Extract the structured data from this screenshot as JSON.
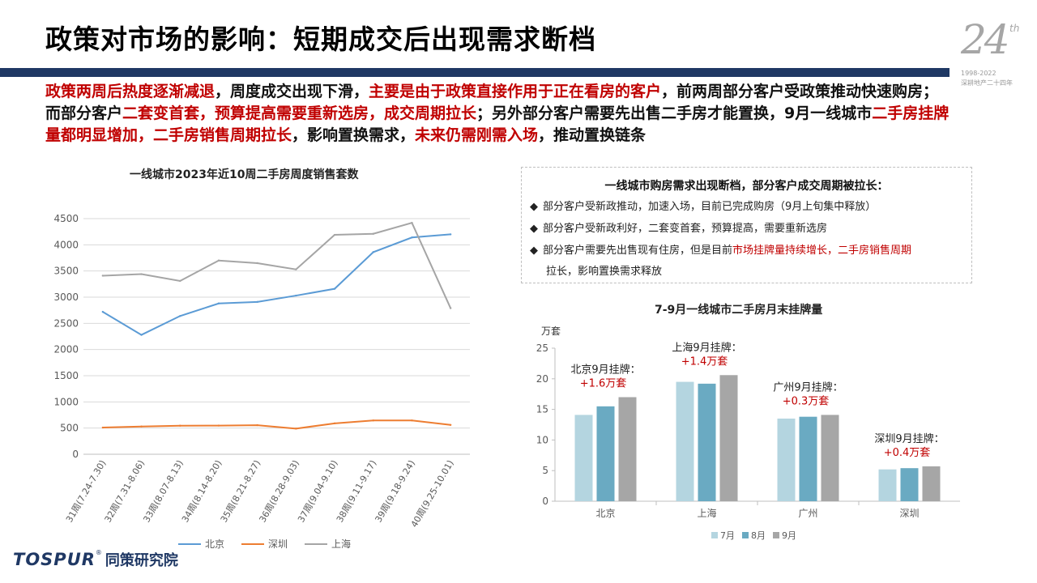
{
  "page": {
    "title": "政策对市场的影响：短期成交后出现需求断档",
    "badge": {
      "number": "24",
      "suffix": "th",
      "years": "1998-2022",
      "motto": "深耕地产二十四年"
    },
    "intro": [
      {
        "t": "政策两周后热度逐渐减退",
        "red": true
      },
      {
        "t": "，周度成交出现下滑，",
        "red": false
      },
      {
        "t": "主要是由于政策直接作用于正在看房的客户",
        "red": true
      },
      {
        "t": "，前两周部分客户受政策推动快速购房；而部分客户",
        "red": false
      },
      {
        "t": "二套变首套，预算提高需要重新选房，成交周期拉长",
        "red": true
      },
      {
        "t": "；另外部分客户需要先出售二手房才能置换，9月一线城市",
        "red": false
      },
      {
        "t": "二手房挂牌量都明显增加，二手房销售周期拉长",
        "red": true
      },
      {
        "t": "，影响置换需求，",
        "red": false
      },
      {
        "t": "未来仍需刚需入场",
        "red": true
      },
      {
        "t": "，推动置换链条",
        "red": false
      }
    ],
    "note": {
      "title": "一线城市购房需求出现断档，部分客户成交周期被拉长：",
      "bullet": "◆",
      "item1": "部分客户受新政推动，加速入场，目前已完成购房（9月上旬集中释放）",
      "item2": "部分客户受新政利好，二套变首套，预算提高，需要重新选房",
      "item3_a": "部分客户需要先出售现有住房，但是目前",
      "item3_red": "市场挂牌量持续增长，二手房销售周期",
      "item3_red2": "拉长，影响置换需求释放"
    },
    "logo": {
      "en": "TOSPUR",
      "reg": "®",
      "cn": "同策研究院"
    }
  },
  "chart_data": [
    {
      "type": "line",
      "title": "一线城市2023年近10周二手房周度销售套数",
      "categories": [
        "31周(7.24-7.30)",
        "32周(7.31-8.06)",
        "33周(8.07-8.13)",
        "34周(8.14-8.20)",
        "35周(8.21-8.27)",
        "36周(8.28-9.03)",
        "37周(9.04-9.10)",
        "38周(9.11-9.17)",
        "39周(9.18-9.24)",
        "40周(9.25-10.01)"
      ],
      "series": [
        {
          "name": "北京",
          "color": "#5b9bd5",
          "values": [
            2720,
            2280,
            2640,
            2880,
            2910,
            3030,
            3160,
            3860,
            4140,
            4200
          ]
        },
        {
          "name": "深圳",
          "color": "#ed7d31",
          "values": [
            510,
            530,
            545,
            548,
            555,
            490,
            590,
            645,
            645,
            560
          ]
        },
        {
          "name": "上海",
          "color": "#a5a5a5",
          "values": [
            3410,
            3440,
            3310,
            3700,
            3650,
            3530,
            4190,
            4210,
            4420,
            2790
          ]
        }
      ],
      "ylim": [
        0,
        4500
      ],
      "yticks": [
        "0",
        "500",
        "1000",
        "1500",
        "2000",
        "2500",
        "3000",
        "3500",
        "4000",
        "4500"
      ],
      "legend": "bottom",
      "grid": true
    },
    {
      "type": "bar",
      "title": "7-9月一线城市二手房月末挂牌量",
      "ylabel": "万套",
      "categories": [
        "北京",
        "上海",
        "广州",
        "深圳"
      ],
      "series": [
        {
          "name": "7月",
          "color": "#b4d5e0",
          "values": [
            14.1,
            19.5,
            13.5,
            5.2
          ]
        },
        {
          "name": "8月",
          "color": "#6aaac2",
          "values": [
            15.5,
            19.2,
            13.8,
            5.4
          ]
        },
        {
          "name": "9月",
          "color": "#a6a6a6",
          "values": [
            17.0,
            20.6,
            14.1,
            5.7
          ]
        }
      ],
      "ylim": [
        0,
        25
      ],
      "yticks": [
        "0",
        "5",
        "10",
        "15",
        "20",
        "25"
      ],
      "legend": "bottom",
      "annotations": [
        {
          "label": "北京9月挂牌：",
          "value": "+1.6万套"
        },
        {
          "label": "上海9月挂牌：",
          "value": "+1.4万套"
        },
        {
          "label": "广州9月挂牌：",
          "value": "+0.3万套"
        },
        {
          "label": "深圳9月挂牌：",
          "value": "+0.4万套"
        }
      ]
    }
  ]
}
